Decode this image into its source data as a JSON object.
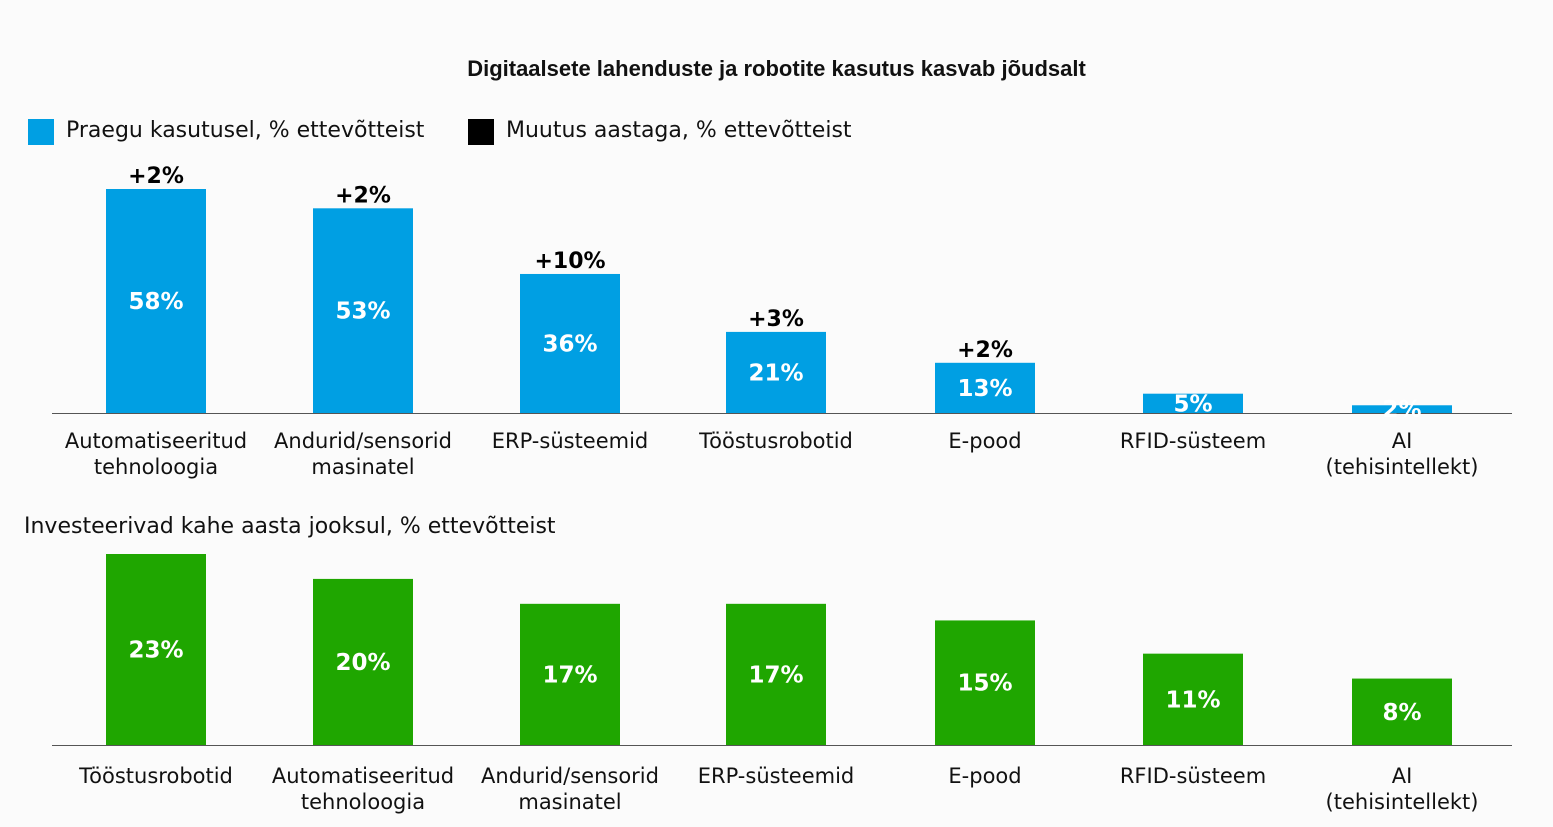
{
  "title": "Digitaalsete lahenduste ja robotite kasutus kasvab jõudsalt",
  "legend": {
    "current_label": "Praegu kasutusel, % ettevõtteist",
    "change_label": "Muutus aastaga, % ettevõtteist"
  },
  "colors": {
    "current": "#009fe3",
    "change": "#000000",
    "invest": "#1fa600"
  },
  "investment_section_title": "Investeerivad kahe aasta jooksul, % ettevõtteist",
  "chart_data": [
    {
      "type": "bar",
      "categories": [
        "Automatiseeritud tehnoloogia",
        "Andurid/sensorid masinatel",
        "ERP-süsteemid",
        "Tööstusrobotid",
        "E-pood",
        "RFID-süsteem",
        "AI (tehisintellekt)"
      ],
      "series": [
        {
          "name": "Praegu kasutusel, % ettevõtteist",
          "values": [
            58,
            53,
            36,
            21,
            13,
            5,
            2
          ],
          "labels": [
            "58%",
            "53%",
            "36%",
            "21%",
            "13%",
            "5%",
            "2%"
          ]
        },
        {
          "name": "Muutus aastaga, % ettevõtteist",
          "labels": [
            "+2%",
            "+2%",
            "+10%",
            "+3%",
            "+2%",
            "",
            ""
          ]
        }
      ]
    },
    {
      "type": "bar",
      "title": "Investeerivad kahe aasta jooksul, % ettevõtteist",
      "categories": [
        "Tööstusrobotid",
        "Automatiseeritud tehnoloogia",
        "Andurid/sensorid masinatel",
        "ERP-süsteemid",
        "E-pood",
        "RFID-süsteem",
        "AI (tehisintellekt)"
      ],
      "series": [
        {
          "values": [
            23,
            20,
            17,
            17,
            15,
            11,
            8
          ],
          "labels": [
            "23%",
            "20%",
            "17%",
            "17%",
            "15%",
            "11%",
            "8%"
          ]
        }
      ]
    }
  ]
}
